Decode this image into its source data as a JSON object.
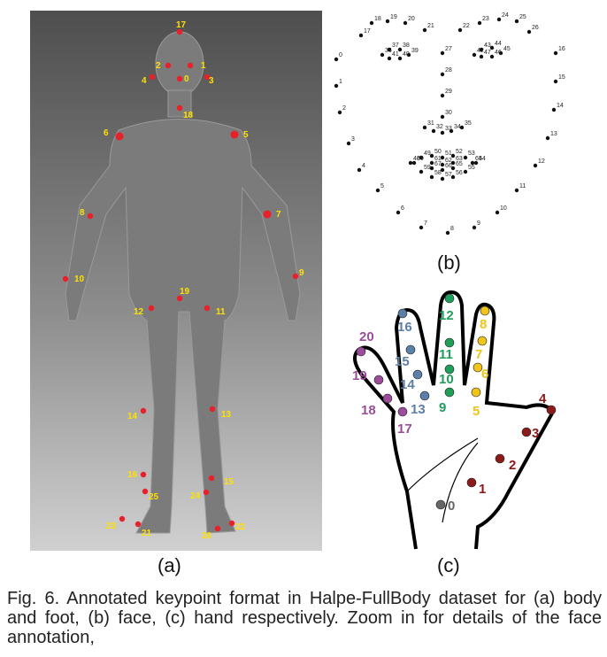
{
  "figure": {
    "caption": "Fig. 6. Annotated keypoint format in Halpe-FullBody dataset for (a) body and foot, (b) face, (c) hand respectively. Zoom in for details of the face annotation,",
    "sublabels": {
      "a": "(a)",
      "b": "(b)",
      "c": "(c)"
    }
  },
  "body": {
    "point_color": "#e8202a",
    "label_color": "#ffe000",
    "keypoints": [
      "0",
      "1",
      "2",
      "3",
      "4",
      "5",
      "6",
      "7",
      "8",
      "9",
      "10",
      "11",
      "12",
      "13",
      "14",
      "15",
      "16",
      "17",
      "18",
      "19",
      "20",
      "21",
      "22",
      "23",
      "24",
      "25"
    ]
  },
  "face": {
    "point_color": "#111111",
    "keypoints": [
      "0",
      "1",
      "2",
      "3",
      "4",
      "5",
      "6",
      "7",
      "8",
      "9",
      "10",
      "11",
      "12",
      "13",
      "14",
      "15",
      "16",
      "17",
      "18",
      "19",
      "20",
      "21",
      "22",
      "23",
      "24",
      "25",
      "26",
      "27",
      "28",
      "29",
      "30",
      "31",
      "32",
      "33",
      "34",
      "35",
      "36",
      "37",
      "38",
      "39",
      "40",
      "41",
      "42",
      "43",
      "44",
      "45",
      "46",
      "47",
      "48",
      "49",
      "50",
      "51",
      "52",
      "53",
      "54",
      "55",
      "56",
      "57",
      "58",
      "59",
      "60",
      "61",
      "62",
      "63",
      "64",
      "65",
      "66",
      "67"
    ]
  },
  "hand": {
    "outline_color": "#000000",
    "keypoints": [
      "0",
      "1",
      "2",
      "3",
      "4",
      "5",
      "6",
      "7",
      "8",
      "9",
      "10",
      "11",
      "12",
      "13",
      "14",
      "15",
      "16",
      "17",
      "18",
      "19",
      "20"
    ],
    "finger_colors": {
      "wrist": "#666666",
      "thumb": "#8b1a1a",
      "index": "#f0c419",
      "middle": "#1f9e5a",
      "ring": "#5b7fa6",
      "pinky": "#9b4c9b"
    }
  }
}
